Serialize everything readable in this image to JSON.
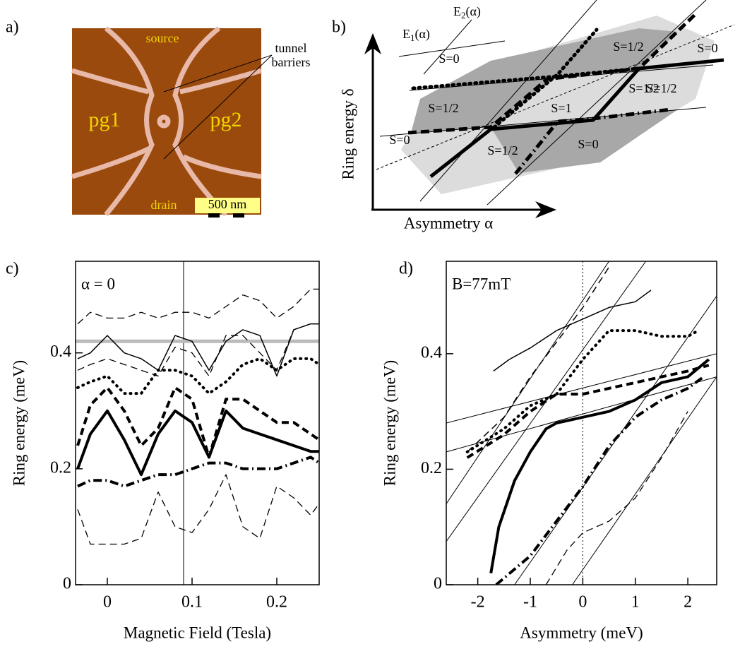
{
  "panel_labels": [
    "a)",
    "b)",
    "c)",
    "d)"
  ],
  "image": {
    "labels": [
      "source",
      "pg1",
      "pg2",
      "drain"
    ],
    "scale_bar": "500 nm",
    "callout": [
      "tunnel",
      "barriers"
    ]
  },
  "diagram": {
    "y_axis": "Ring energy δ",
    "x_axis": "Asymmetry α",
    "line_labels": [
      {
        "base": "E",
        "sub": "1",
        "arg": "(α)"
      },
      {
        "base": "E",
        "sub": "2",
        "arg": "(α)"
      }
    ],
    "regions": [
      "S=0",
      "S=1/2",
      "S=0",
      "S=1/2",
      "S=1/2",
      "S=1",
      "S=0",
      "S=1/2",
      "S=0",
      "S=1/2"
    ]
  },
  "chart_data": [
    {
      "type": "line",
      "annotation": "α = 0",
      "x_label": "Magnetic Field (Tesla)",
      "y_label": "Ring energy (meV)",
      "xlim": [
        -0.0375,
        0.25
      ],
      "ylim": [
        0,
        0.558
      ],
      "xticks": [
        0,
        0.1,
        0.2
      ],
      "yticks": [
        0,
        0.2,
        0.4
      ],
      "reference_lines": [
        {
          "axis": "x",
          "value": 0.09,
          "color": "#000000",
          "style": "solid"
        },
        {
          "axis": "y",
          "value": 0.42,
          "color": "#bbbbbb",
          "style": "gray"
        }
      ],
      "x": [
        -0.035,
        -0.02,
        0,
        0.02,
        0.04,
        0.06,
        0.08,
        0.1,
        0.12,
        0.14,
        0.16,
        0.18,
        0.2,
        0.22,
        0.24,
        0.25
      ],
      "series": [
        {
          "style": "dashed",
          "width": 1.3,
          "color": "#000000",
          "values": [
            0.45,
            0.47,
            0.46,
            0.46,
            0.47,
            0.46,
            0.47,
            0.47,
            0.46,
            0.48,
            0.5,
            0.49,
            0.46,
            0.48,
            0.51,
            0.51
          ]
        },
        {
          "style": "solid",
          "width": 1.5,
          "color": "#000000",
          "values": [
            0.39,
            0.4,
            0.43,
            0.4,
            0.39,
            0.37,
            0.43,
            0.42,
            0.37,
            0.42,
            0.44,
            0.43,
            0.36,
            0.44,
            0.45,
            0.45
          ]
        },
        {
          "style": "dashed",
          "width": 1.3,
          "color": "#000000",
          "values": [
            0.37,
            0.38,
            0.39,
            0.38,
            0.37,
            0.36,
            0.41,
            0.4,
            0.36,
            0.43,
            0.43,
            0.4,
            0.37,
            0.44,
            0.45,
            0.45
          ]
        },
        {
          "style": "dotted",
          "width": 4,
          "color": "#000000",
          "values": [
            0.34,
            0.35,
            0.36,
            0.33,
            0.33,
            0.37,
            0.37,
            0.36,
            0.33,
            0.35,
            0.38,
            0.39,
            0.37,
            0.39,
            0.39,
            0.38
          ]
        },
        {
          "style": "dashed",
          "width": 4,
          "color": "#000000",
          "values": [
            0.24,
            0.31,
            0.34,
            0.3,
            0.24,
            0.27,
            0.34,
            0.32,
            0.22,
            0.32,
            0.32,
            0.3,
            0.28,
            0.28,
            0.26,
            0.25
          ]
        },
        {
          "style": "solid",
          "width": 4,
          "color": "#000000",
          "values": [
            0.2,
            0.26,
            0.3,
            0.25,
            0.19,
            0.26,
            0.3,
            0.28,
            0.22,
            0.3,
            0.27,
            0.26,
            0.25,
            0.24,
            0.23,
            0.23
          ]
        },
        {
          "style": "dashdot",
          "width": 4,
          "color": "#000000",
          "values": [
            0.17,
            0.18,
            0.18,
            0.17,
            0.18,
            0.19,
            0.19,
            0.2,
            0.21,
            0.21,
            0.2,
            0.2,
            0.2,
            0.21,
            0.22,
            0.21
          ]
        },
        {
          "style": "dashed",
          "width": 1.3,
          "color": "#000000",
          "values": [
            0.13,
            0.07,
            0.07,
            0.07,
            0.08,
            0.16,
            0.1,
            0.09,
            0.13,
            0.19,
            0.1,
            0.08,
            0.17,
            0.15,
            0.12,
            0.14
          ]
        }
      ]
    },
    {
      "type": "line",
      "annotation": "B=77mT",
      "x_label": "Asymmetry (meV)",
      "y_label": "Ring energy (meV)",
      "xlim": [
        -2.6,
        2.55
      ],
      "ylim": [
        0,
        0.56
      ],
      "xticks": [
        -2,
        -1,
        0,
        1,
        2
      ],
      "yticks": [
        0,
        0.2,
        0.4
      ],
      "reference_lines": [
        {
          "axis": "x",
          "value": 0,
          "color": "#000000",
          "style": "dotted"
        }
      ],
      "series": [
        {
          "style": "solid",
          "width": 1,
          "color": "#000000",
          "x": [
            -2.6,
            0.5
          ],
          "values": [
            0.14,
            0.56
          ]
        },
        {
          "style": "solid",
          "width": 1,
          "color": "#000000",
          "x": [
            -2.6,
            1.2
          ],
          "values": [
            0.075,
            0.56
          ]
        },
        {
          "style": "solid",
          "width": 1,
          "color": "#000000",
          "x": [
            -1.3,
            2.55
          ],
          "values": [
            0,
            0.5
          ]
        },
        {
          "style": "solid",
          "width": 1,
          "color": "#000000",
          "x": [
            -0.2,
            2.55
          ],
          "values": [
            0,
            0.36
          ]
        },
        {
          "style": "solid",
          "width": 1,
          "color": "#000000",
          "x": [
            -2.6,
            2.55
          ],
          "values": [
            0.23,
            0.36
          ]
        },
        {
          "style": "solid",
          "width": 1,
          "color": "#000000",
          "x": [
            -2.6,
            2.55
          ],
          "values": [
            0.28,
            0.4
          ]
        },
        {
          "style": "solid",
          "width": 1.5,
          "color": "#000000",
          "x": [
            -1.7,
            -1.4,
            -1,
            -0.5,
            0,
            0.5,
            1,
            1.3
          ],
          "values": [
            0.37,
            0.39,
            0.41,
            0.44,
            0.46,
            0.48,
            0.49,
            0.51
          ]
        },
        {
          "style": "dashed",
          "width": 1.5,
          "color": "#000000",
          "x": [
            -2.2,
            -1.5,
            -1,
            -0.5,
            0,
            0.5
          ],
          "values": [
            0.23,
            0.29,
            0.36,
            0.42,
            0.48,
            0.55
          ]
        },
        {
          "style": "dotted",
          "width": 4,
          "color": "#000000",
          "x": [
            -2.2,
            -1.5,
            -1,
            -0.5,
            0,
            0.5,
            1,
            1.5,
            2,
            2.2
          ],
          "values": [
            0.23,
            0.27,
            0.31,
            0.33,
            0.39,
            0.44,
            0.44,
            0.43,
            0.43,
            0.44
          ]
        },
        {
          "style": "dashed",
          "width": 4,
          "color": "#000000",
          "x": [
            -2.2,
            -1.5,
            -1,
            -0.5,
            0,
            0.5,
            1,
            1.5,
            2,
            2.4
          ],
          "values": [
            0.22,
            0.26,
            0.3,
            0.33,
            0.33,
            0.34,
            0.35,
            0.36,
            0.37,
            0.38
          ]
        },
        {
          "style": "solid",
          "width": 4,
          "color": "#000000",
          "x": [
            -1.75,
            -1.6,
            -1.3,
            -1,
            -0.7,
            -0.5,
            0,
            0.5,
            1,
            1.5,
            2,
            2.4
          ],
          "values": [
            0.02,
            0.1,
            0.18,
            0.23,
            0.27,
            0.28,
            0.29,
            0.3,
            0.32,
            0.35,
            0.36,
            0.39
          ]
        },
        {
          "style": "dashdot",
          "width": 4,
          "color": "#000000",
          "x": [
            -1.65,
            -1,
            -0.5,
            0,
            0.5,
            1,
            1.5,
            2,
            2.3
          ],
          "values": [
            0,
            0.05,
            0.11,
            0.17,
            0.24,
            0.29,
            0.32,
            0.34,
            0.36
          ]
        },
        {
          "style": "dashed",
          "width": 1.3,
          "color": "#000000",
          "x": [
            -0.7,
            -0.3,
            0,
            0.5,
            1,
            1.5,
            2
          ],
          "values": [
            0,
            0.06,
            0.09,
            0.11,
            0.15,
            0.22,
            0.3
          ]
        }
      ]
    }
  ]
}
